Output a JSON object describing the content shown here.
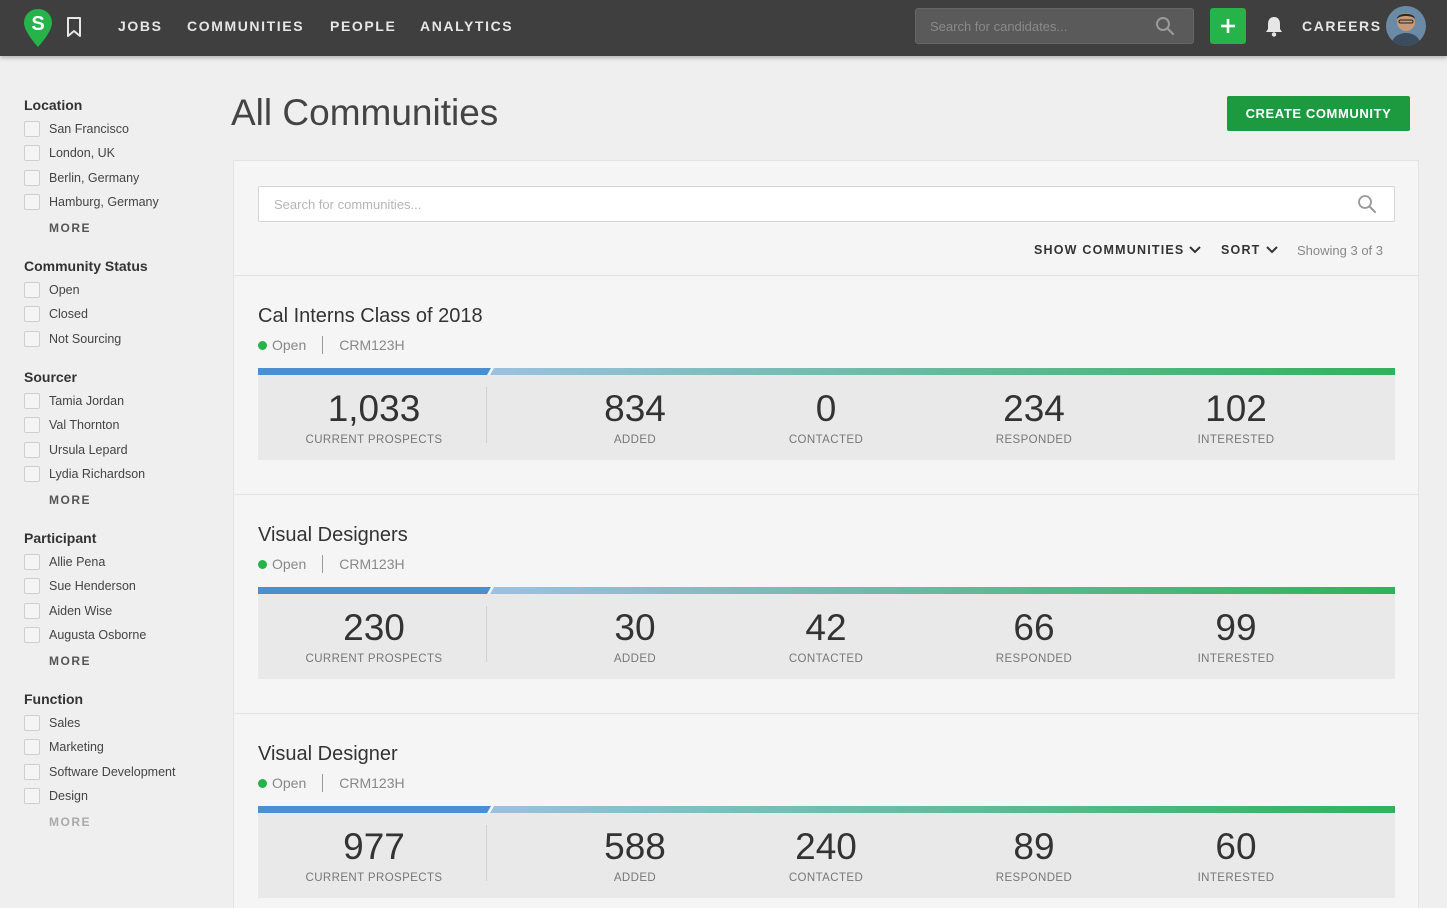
{
  "nav": {
    "logo_letter": "S",
    "items": [
      "JOBS",
      "COMMUNITIES",
      "PEOPLE",
      "ANALYTICS"
    ],
    "search_placeholder": "Search for candidates...",
    "careers": "CAREERS"
  },
  "sidebar": {
    "location": {
      "title": "Location",
      "options": [
        "San Francisco",
        "London, UK",
        "Berlin, Germany",
        "Hamburg, Germany"
      ],
      "more": "MORE"
    },
    "status": {
      "title": "Community Status",
      "options": [
        "Open",
        "Closed",
        "Not Sourcing"
      ]
    },
    "sourcer": {
      "title": "Sourcer",
      "options": [
        "Tamia Jordan",
        "Val Thornton",
        "Ursula Lepard",
        "Lydia Richardson"
      ],
      "more": "MORE"
    },
    "participant": {
      "title": "Participant",
      "options": [
        "Allie Pena",
        "Sue Henderson",
        "Aiden Wise",
        "Augusta Osborne"
      ],
      "more": "MORE"
    },
    "function": {
      "title": "Function",
      "options": [
        "Sales",
        "Marketing",
        "Software Development",
        "Design"
      ],
      "more": "MORE"
    }
  },
  "main": {
    "title": "All Communities",
    "create_label": "CREATE COMMUNITY",
    "search_placeholder": "Search for communities...",
    "show_label": "SHOW COMMUNITIES",
    "sort_label": "SORT",
    "showing": "Showing 3 of 3",
    "communities": [
      {
        "name": "Cal Interns Class of 2018",
        "status": "Open",
        "code": "CRM123H",
        "stats": [
          {
            "value": "1,033",
            "label": "CURRENT PROSPECTS"
          },
          {
            "value": "834",
            "label": "ADDED"
          },
          {
            "value": "0",
            "label": "CONTACTED"
          },
          {
            "value": "234",
            "label": "RESPONDED"
          },
          {
            "value": "102",
            "label": "INTERESTED"
          }
        ]
      },
      {
        "name": "Visual Designers",
        "status": "Open",
        "code": "CRM123H",
        "stats": [
          {
            "value": "230",
            "label": "CURRENT PROSPECTS"
          },
          {
            "value": "30",
            "label": "ADDED"
          },
          {
            "value": "42",
            "label": "CONTACTED"
          },
          {
            "value": "66",
            "label": "RESPONDED"
          },
          {
            "value": "99",
            "label": "INTERESTED"
          }
        ]
      },
      {
        "name": "Visual Designer",
        "status": "Open",
        "code": "CRM123H",
        "stats": [
          {
            "value": "977",
            "label": "CURRENT PROSPECTS"
          },
          {
            "value": "588",
            "label": "ADDED"
          },
          {
            "value": "240",
            "label": "CONTACTED"
          },
          {
            "value": "89",
            "label": "RESPONDED"
          },
          {
            "value": "60",
            "label": "INTERESTED"
          }
        ]
      }
    ]
  },
  "colors": {
    "topbar": "#3f3f3f",
    "accent_green": "#25b34a",
    "button_green": "#1d9a3f",
    "bar_blue": "#4a8fd1",
    "bar_green": "#2eb35a"
  },
  "icons": [
    "logo-icon",
    "bookmark-icon",
    "search-icon",
    "plus-icon",
    "bell-icon",
    "avatar",
    "chevron-down-icon"
  ]
}
